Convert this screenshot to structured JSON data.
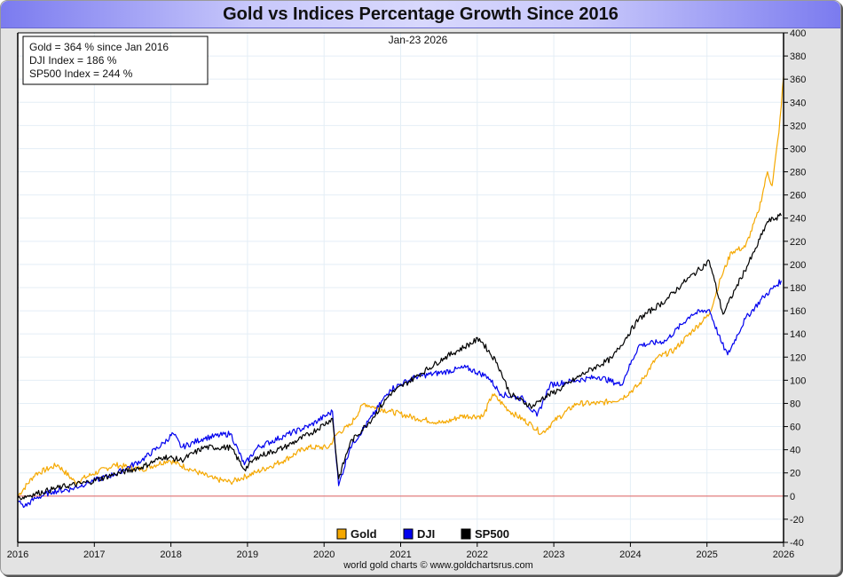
{
  "chart_data": {
    "type": "line",
    "title": "Gold vs Indices Percentage Growth Since 2016",
    "date_label": "Jan-23  2026",
    "info_box": [
      "Gold = 364 % since Jan 2016",
      "DJI Index = 186 %",
      "SP500 Index = 244 %"
    ],
    "credit": "world gold charts © www.goldchartsrus.com",
    "xlabel": "",
    "ylabel": "",
    "xlim": [
      2016,
      2026
    ],
    "ylim": [
      -40,
      400
    ],
    "x_ticks": [
      "2016",
      "2017",
      "2018",
      "2019",
      "2020",
      "2021",
      "2022",
      "2023",
      "2024",
      "2025",
      "2026"
    ],
    "y_ticks": [
      400,
      380,
      360,
      340,
      320,
      300,
      280,
      260,
      240,
      220,
      200,
      180,
      160,
      140,
      120,
      100,
      80,
      60,
      40,
      20,
      0,
      -20,
      -40
    ],
    "grid": true,
    "legend_position": "bottom-center",
    "zero_line_color": "#e06060",
    "series": [
      {
        "name": "Gold",
        "color": "#f5a800",
        "x": [
          2016.0,
          2016.23,
          2016.52,
          2016.75,
          2016.98,
          2017.27,
          2017.62,
          2017.97,
          2018.26,
          2018.55,
          2018.78,
          2019.13,
          2019.48,
          2019.77,
          2020.06,
          2020.17,
          2020.34,
          2020.52,
          2020.64,
          2020.87,
          2021.22,
          2021.56,
          2021.79,
          2022.08,
          2022.2,
          2022.43,
          2022.72,
          2022.84,
          2023.01,
          2023.3,
          2023.59,
          2023.88,
          2024.11,
          2024.34,
          2024.57,
          2024.8,
          2025.03,
          2025.18,
          2025.32,
          2025.5,
          2025.67,
          2025.79,
          2025.85,
          2025.94,
          2026.0
        ],
        "values": [
          0,
          19,
          27,
          12,
          19,
          27,
          23,
          31,
          23,
          15,
          12,
          21,
          31,
          42,
          42,
          54,
          61,
          80,
          77,
          73,
          67,
          63,
          69,
          69,
          88,
          73,
          61,
          54,
          65,
          80,
          80,
          84,
          96,
          119,
          126,
          142,
          157,
          188,
          211,
          215,
          245,
          280,
          268,
          314,
          362
        ]
      },
      {
        "name": "DJI",
        "color": "#0000ee",
        "x": [
          2016.0,
          2016.09,
          2016.23,
          2016.46,
          2016.7,
          2016.93,
          2017.27,
          2017.62,
          2017.91,
          2018.03,
          2018.14,
          2018.43,
          2018.78,
          2018.96,
          2019.13,
          2019.48,
          2019.82,
          2020.11,
          2020.19,
          2020.34,
          2020.63,
          2020.86,
          2021.2,
          2021.56,
          2021.85,
          2022.14,
          2022.31,
          2022.6,
          2022.78,
          2022.95,
          2023.3,
          2023.59,
          2023.88,
          2024.11,
          2024.46,
          2024.8,
          2025.03,
          2025.18,
          2025.27,
          2025.5,
          2025.74,
          2025.97
        ],
        "values": [
          -4,
          -9,
          -2,
          4,
          6,
          12,
          19,
          31,
          46,
          54,
          42,
          50,
          54,
          27,
          42,
          52,
          61,
          73,
          9,
          42,
          69,
          92,
          103,
          107,
          111,
          103,
          88,
          84,
          69,
          96,
          100,
          103,
          96,
          130,
          134,
          157,
          161,
          134,
          122,
          153,
          172,
          186
        ]
      },
      {
        "name": "SP500",
        "color": "#000000",
        "x": [
          2016.0,
          2016.23,
          2016.58,
          2016.93,
          2017.27,
          2017.62,
          2017.91,
          2018.14,
          2018.43,
          2018.78,
          2018.96,
          2019.13,
          2019.48,
          2019.82,
          2020.11,
          2020.19,
          2020.34,
          2020.63,
          2020.86,
          2021.2,
          2021.56,
          2022.03,
          2022.26,
          2022.43,
          2022.72,
          2022.84,
          2023.07,
          2023.42,
          2023.76,
          2024.11,
          2024.46,
          2024.69,
          2025.03,
          2025.21,
          2025.38,
          2025.62,
          2025.79,
          2025.97
        ],
        "values": [
          -2,
          2,
          8,
          12,
          19,
          25,
          34,
          31,
          42,
          42,
          23,
          34,
          42,
          54,
          67,
          15,
          46,
          67,
          88,
          103,
          119,
          136,
          115,
          88,
          77,
          84,
          92,
          107,
          119,
          153,
          169,
          184,
          203,
          157,
          180,
          211,
          237,
          242
        ]
      }
    ]
  }
}
